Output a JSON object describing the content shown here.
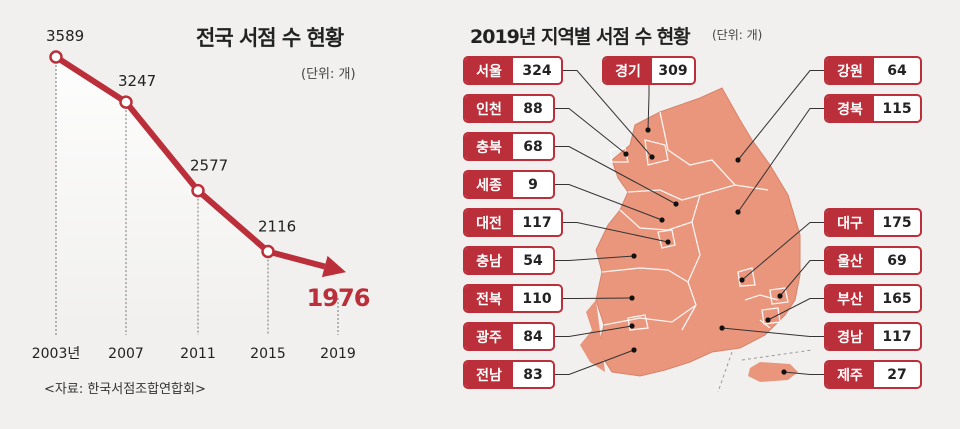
{
  "left": {
    "title": "전국 서점 수 현황",
    "unit": "(단위: 개)",
    "source": "<자료: 한국서점조합연합회>"
  },
  "right": {
    "title": "2019년 지역별 서점 수 현황",
    "unit": "(단위: 개)"
  },
  "colors": {
    "accent": "#bb2f3a",
    "map_fill": "#e9967c",
    "background": "#f1f0ee"
  },
  "chart_data": [
    {
      "type": "line",
      "title": "전국 서점 수 현황",
      "x": [
        "2003년",
        "2007",
        "2011",
        "2015",
        "2019"
      ],
      "series": [
        {
          "values": [
            3589,
            3247,
            2577,
            2116,
            1976
          ]
        }
      ],
      "grid": false
    },
    {
      "type": "table",
      "title": "2019년 지역별 서점 수 현황",
      "regions": [
        {
          "name": "서울",
          "value": 324
        },
        {
          "name": "경기",
          "value": 309
        },
        {
          "name": "인천",
          "value": 88
        },
        {
          "name": "충북",
          "value": 68
        },
        {
          "name": "세종",
          "value": 9
        },
        {
          "name": "대전",
          "value": 117
        },
        {
          "name": "충남",
          "value": 54
        },
        {
          "name": "전북",
          "value": 110
        },
        {
          "name": "광주",
          "value": 84
        },
        {
          "name": "전남",
          "value": 83
        },
        {
          "name": "강원",
          "value": 64
        },
        {
          "name": "경북",
          "value": 115
        },
        {
          "name": "대구",
          "value": 175
        },
        {
          "name": "울산",
          "value": 69
        },
        {
          "name": "부산",
          "value": 165
        },
        {
          "name": "경남",
          "value": 117
        },
        {
          "name": "제주",
          "value": 27
        }
      ]
    }
  ]
}
